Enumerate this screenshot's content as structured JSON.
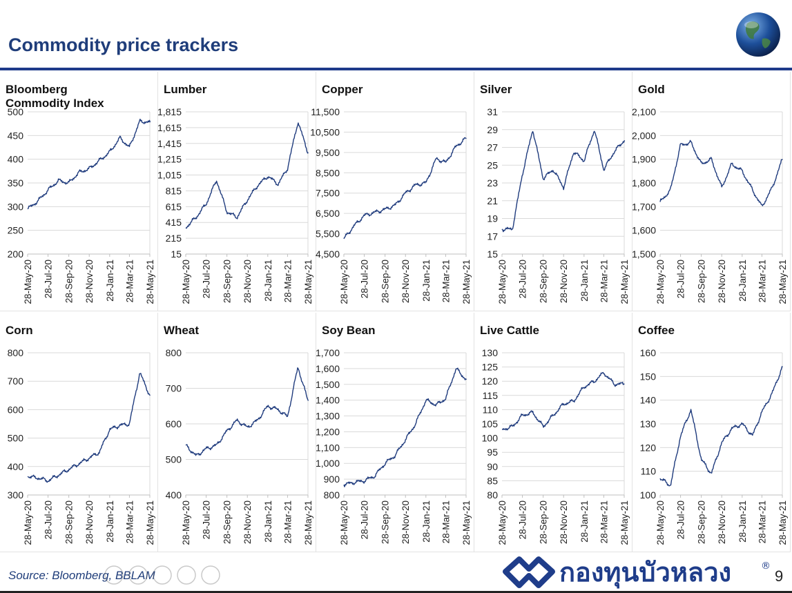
{
  "header": {
    "title": "Commodity price trackers"
  },
  "footer": {
    "source": "Source: Bloomberg, BBLAM",
    "logo_text": "กองทุนบัวหลวง",
    "registered": "®",
    "page": "9"
  },
  "colors": {
    "line": "#1f3b7d",
    "title": "#1f3d7a",
    "rule": "#1e3a8a",
    "grid": "#d9d9d9"
  },
  "x_ticks": [
    "28-May-20",
    "28-Jul-20",
    "28-Sep-20",
    "28-Nov-20",
    "28-Jan-21",
    "28-Mar-21",
    "28-May-21"
  ],
  "chart_data": [
    {
      "type": "line",
      "title": "Bloomberg Commodity Index",
      "ylim": [
        200,
        500
      ],
      "yticks": [
        "200",
        "250",
        "300",
        "350",
        "400",
        "450",
        "500"
      ],
      "x": [
        "28-May-20",
        "28-Jun-20",
        "28-Jul-20",
        "28-Aug-20",
        "28-Sep-20",
        "28-Oct-20",
        "28-Nov-20",
        "28-Dec-20",
        "28-Jan-21",
        "28-Feb-21",
        "28-Mar-21",
        "28-Apr-21",
        "28-May-21"
      ],
      "values": [
        295,
        312,
        335,
        355,
        350,
        372,
        380,
        397,
        415,
        445,
        425,
        480,
        478
      ]
    },
    {
      "type": "line",
      "title": "Lumber",
      "ylim": [
        15,
        1815
      ],
      "yticks": [
        "15",
        "215",
        "415",
        "615",
        "815",
        "1,015",
        "1,215",
        "1,415",
        "1,615",
        "1,815"
      ],
      "x": [
        "28-May-20",
        "28-Jun-20",
        "28-Jul-20",
        "28-Aug-20",
        "28-Sep-20",
        "28-Oct-20",
        "28-Nov-20",
        "28-Dec-20",
        "28-Jan-21",
        "28-Feb-21",
        "28-Mar-21",
        "28-Apr-21",
        "28-May-21"
      ],
      "values": [
        350,
        480,
        650,
        950,
        550,
        480,
        700,
        880,
        1000,
        900,
        1100,
        1690,
        1300
      ]
    },
    {
      "type": "line",
      "title": "Copper",
      "ylim": [
        4500,
        11500
      ],
      "yticks": [
        "4,500",
        "5,500",
        "6,500",
        "7,500",
        "8,500",
        "9,500",
        "10,500",
        "11,500"
      ],
      "x": [
        "28-May-20",
        "28-Jun-20",
        "28-Jul-20",
        "28-Aug-20",
        "28-Sep-20",
        "28-Oct-20",
        "28-Nov-20",
        "28-Dec-20",
        "28-Jan-21",
        "28-Feb-21",
        "28-Mar-21",
        "28-Apr-21",
        "28-May-21"
      ],
      "values": [
        5250,
        5900,
        6400,
        6550,
        6700,
        6900,
        7500,
        7900,
        8000,
        9200,
        9000,
        9800,
        10200
      ]
    },
    {
      "type": "line",
      "title": "Silver",
      "ylim": [
        15,
        31
      ],
      "yticks": [
        "15",
        "17",
        "19",
        "21",
        "23",
        "25",
        "27",
        "29",
        "31"
      ],
      "x": [
        "28-May-20",
        "28-Jun-20",
        "28-Jul-20",
        "28-Aug-20",
        "28-Sep-20",
        "28-Oct-20",
        "28-Nov-20",
        "28-Dec-20",
        "28-Jan-21",
        "28-Feb-21",
        "28-Mar-21",
        "28-Apr-21",
        "28-May-21"
      ],
      "values": [
        17.8,
        17.8,
        24,
        29,
        23.5,
        24.5,
        22.5,
        26.5,
        25.5,
        29,
        24.5,
        26.5,
        27.8
      ]
    },
    {
      "type": "line",
      "title": "Gold",
      "ylim": [
        1500,
        2100
      ],
      "yticks": [
        "1,500",
        "1,600",
        "1,700",
        "1,800",
        "1,900",
        "2,000",
        "2,100"
      ],
      "x": [
        "28-May-20",
        "28-Jun-20",
        "28-Jul-20",
        "28-Aug-20",
        "28-Sep-20",
        "28-Oct-20",
        "28-Nov-20",
        "28-Dec-20",
        "28-Jan-21",
        "28-Feb-21",
        "28-Mar-21",
        "28-Apr-21",
        "28-May-21"
      ],
      "values": [
        1720,
        1770,
        1960,
        1970,
        1880,
        1900,
        1780,
        1880,
        1850,
        1770,
        1700,
        1780,
        1900
      ]
    },
    {
      "type": "line",
      "title": "Corn",
      "ylim": [
        300,
        800
      ],
      "yticks": [
        "300",
        "400",
        "500",
        "600",
        "700",
        "800"
      ],
      "x": [
        "28-May-20",
        "28-Jun-20",
        "28-Jul-20",
        "28-Aug-20",
        "28-Sep-20",
        "28-Oct-20",
        "28-Nov-20",
        "28-Dec-20",
        "28-Jan-21",
        "28-Feb-21",
        "28-Mar-21",
        "28-Apr-21",
        "28-May-21"
      ],
      "values": [
        365,
        360,
        350,
        370,
        390,
        410,
        430,
        450,
        530,
        545,
        550,
        730,
        650
      ]
    },
    {
      "type": "line",
      "title": "Wheat",
      "ylim": [
        400,
        800
      ],
      "yticks": [
        "400",
        "500",
        "600",
        "700",
        "800"
      ],
      "x": [
        "28-May-20",
        "28-Jun-20",
        "28-Jul-20",
        "28-Aug-20",
        "28-Sep-20",
        "28-Oct-20",
        "28-Nov-20",
        "28-Dec-20",
        "28-Jan-21",
        "28-Feb-21",
        "28-Mar-21",
        "28-Apr-21",
        "28-May-21"
      ],
      "values": [
        540,
        510,
        530,
        540,
        580,
        610,
        590,
        610,
        650,
        640,
        620,
        760,
        665
      ]
    },
    {
      "type": "line",
      "title": "Soy Bean",
      "ylim": [
        800,
        1700
      ],
      "yticks": [
        "800",
        "900",
        "1,000",
        "1,100",
        "1,200",
        "1,300",
        "1,400",
        "1,500",
        "1,600",
        "1,700"
      ],
      "x": [
        "28-May-20",
        "28-Jun-20",
        "28-Jul-20",
        "28-Aug-20",
        "28-Sep-20",
        "28-Oct-20",
        "28-Nov-20",
        "28-Dec-20",
        "28-Jan-21",
        "28-Feb-21",
        "28-Mar-21",
        "28-Apr-21",
        "28-May-21"
      ],
      "values": [
        865,
        880,
        890,
        920,
        1000,
        1050,
        1150,
        1250,
        1400,
        1370,
        1410,
        1600,
        1530
      ]
    },
    {
      "type": "line",
      "title": "Live Cattle",
      "ylim": [
        80,
        130
      ],
      "yticks": [
        "80",
        "85",
        "90",
        "95",
        "100",
        "105",
        "110",
        "115",
        "120",
        "125",
        "130"
      ],
      "x": [
        "28-May-20",
        "28-Jun-20",
        "28-Jul-20",
        "28-Aug-20",
        "28-Sep-20",
        "28-Oct-20",
        "28-Nov-20",
        "28-Dec-20",
        "28-Jan-21",
        "28-Feb-21",
        "28-Mar-21",
        "28-Apr-21",
        "28-May-21"
      ],
      "values": [
        103,
        104,
        108,
        109,
        104,
        108,
        112,
        113,
        118,
        120,
        123,
        119,
        119
      ]
    },
    {
      "type": "line",
      "title": "Coffee",
      "ylim": [
        100,
        160
      ],
      "yticks": [
        "100",
        "110",
        "120",
        "130",
        "140",
        "150",
        "160"
      ],
      "x": [
        "28-May-20",
        "28-Jun-20",
        "28-Jul-20",
        "28-Aug-20",
        "28-Sep-20",
        "28-Oct-20",
        "28-Nov-20",
        "28-Dec-20",
        "28-Jan-21",
        "28-Feb-21",
        "28-Mar-21",
        "28-Apr-21",
        "28-May-21"
      ],
      "values": [
        107,
        104,
        125,
        136,
        115,
        109,
        122,
        128,
        130,
        125,
        135,
        143,
        154
      ]
    }
  ]
}
